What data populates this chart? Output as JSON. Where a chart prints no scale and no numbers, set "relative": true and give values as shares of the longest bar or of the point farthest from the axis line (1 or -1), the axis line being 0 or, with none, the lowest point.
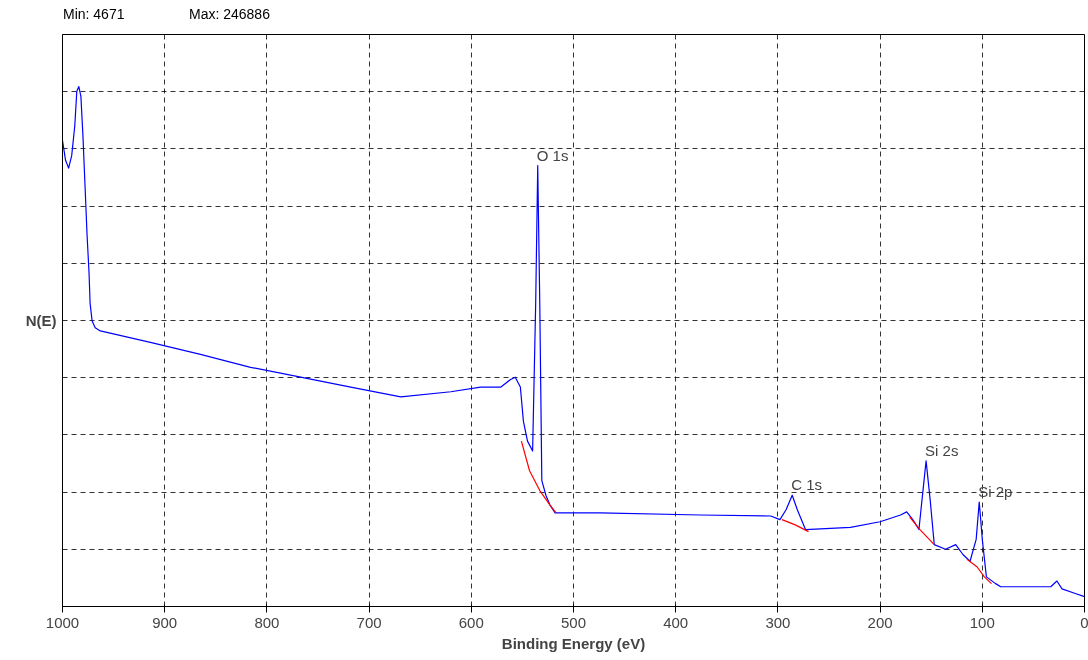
{
  "chart_data": {
    "type": "line",
    "relative": true,
    "xlabel": "Binding Energy (eV)",
    "ylabel": "N(E)",
    "xlim": [
      1000,
      0
    ],
    "xticks": [
      0,
      100,
      200,
      300,
      400,
      500,
      600,
      700,
      800,
      900,
      1000
    ],
    "grid": true,
    "series": [
      {
        "color": "#0000ff",
        "x": [
          1000,
          997,
          994,
          991,
          988,
          986,
          984,
          982,
          980,
          978,
          976,
          974,
          973,
          971,
          968,
          963,
          914,
          865,
          816,
          767,
          718,
          669,
          620,
          591,
          571,
          562,
          557,
          552,
          549,
          545,
          540,
          537,
          535,
          533,
          531,
          527,
          523,
          518,
          474,
          376,
          307,
          298,
          292,
          286,
          281,
          273,
          229,
          200,
          180,
          174,
          168,
          162,
          159,
          155,
          151,
          147,
          136,
          126,
          119,
          112,
          106,
          103,
          100,
          96,
          87,
          82,
          33,
          27,
          22,
          9,
          0
        ],
        "values": [
          0.896,
          0.858,
          0.843,
          0.867,
          0.924,
          0.991,
          1.0,
          0.981,
          0.905,
          0.811,
          0.716,
          0.64,
          0.583,
          0.549,
          0.536,
          0.53,
          0.508,
          0.485,
          0.46,
          0.441,
          0.422,
          0.403,
          0.413,
          0.422,
          0.422,
          0.436,
          0.441,
          0.422,
          0.356,
          0.318,
          0.299,
          0.583,
          0.848,
          0.583,
          0.242,
          0.214,
          0.195,
          0.18,
          0.18,
          0.176,
          0.174,
          0.167,
          0.186,
          0.214,
          0.186,
          0.148,
          0.152,
          0.163,
          0.176,
          0.182,
          0.167,
          0.148,
          0.205,
          0.28,
          0.205,
          0.119,
          0.11,
          0.119,
          0.1,
          0.087,
          0.129,
          0.201,
          0.129,
          0.057,
          0.044,
          0.038,
          0.038,
          0.049,
          0.034,
          0.025,
          0.019
        ]
      },
      {
        "color": "#ff0000",
        "x": [
          551,
          543,
          533,
          523,
          517,
          400,
          296,
          283,
          270,
          250,
          171,
          161,
          147,
          120,
          115,
          105,
          98,
          91
        ],
        "values": [
          0.318,
          0.261,
          0.223,
          0.195,
          0.18,
          null,
          0.167,
          0.157,
          0.144,
          null,
          0.172,
          0.148,
          0.119,
          null,
          0.091,
          0.076,
          0.057,
          0.044
        ]
      }
    ],
    "annotations": [
      "Min: 4671",
      "Max: 246886",
      {
        "text": "O 1s",
        "x": 535,
        "y": 0.848
      },
      {
        "text": "C 1s",
        "x": 286,
        "y": 0.214
      },
      {
        "text": "Si 2s",
        "x": 155,
        "y": 0.28
      },
      {
        "text": "Si 2p",
        "x": 103,
        "y": 0.201
      }
    ]
  }
}
